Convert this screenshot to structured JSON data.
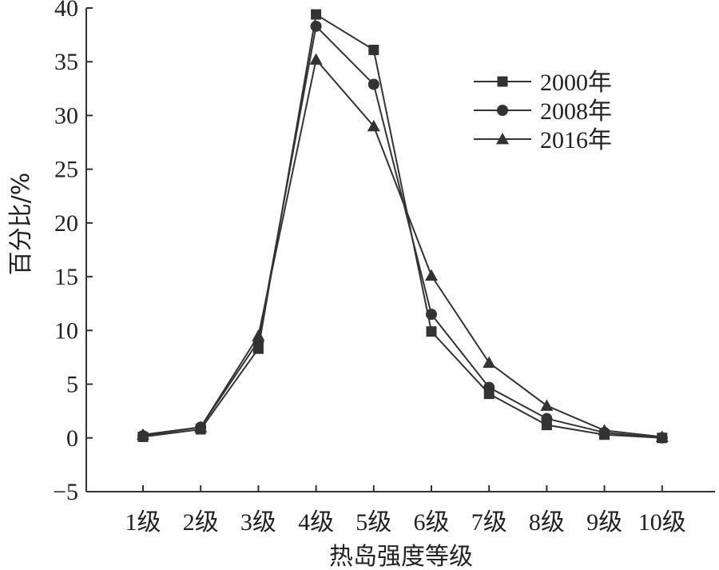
{
  "chart_data": {
    "type": "line",
    "xlabel": "热岛强度等级",
    "ylabel": "百分比/%",
    "categories": [
      "1级",
      "2级",
      "3级",
      "4级",
      "5级",
      "6级",
      "7级",
      "8级",
      "9级",
      "10级"
    ],
    "yticks": [
      "−5",
      "0",
      "5",
      "10",
      "15",
      "20",
      "25",
      "30",
      "35",
      "40"
    ],
    "ylim": [
      -5,
      40
    ],
    "grid": false,
    "legend_position": "top-right",
    "line_color": "#333333",
    "series": [
      {
        "name": "2000年",
        "marker": "square",
        "values": [
          0.1,
          0.8,
          8.3,
          39.4,
          36.1,
          9.9,
          4.1,
          1.2,
          0.3,
          0.0
        ]
      },
      {
        "name": "2008年",
        "marker": "circle",
        "values": [
          0.2,
          1.0,
          9.0,
          38.3,
          32.9,
          11.5,
          4.7,
          1.8,
          0.5,
          0.0
        ]
      },
      {
        "name": "2016年",
        "marker": "triangle",
        "values": [
          0.3,
          1.0,
          9.5,
          35.2,
          29.0,
          15.1,
          7.0,
          3.0,
          0.7,
          0.1
        ]
      }
    ]
  }
}
